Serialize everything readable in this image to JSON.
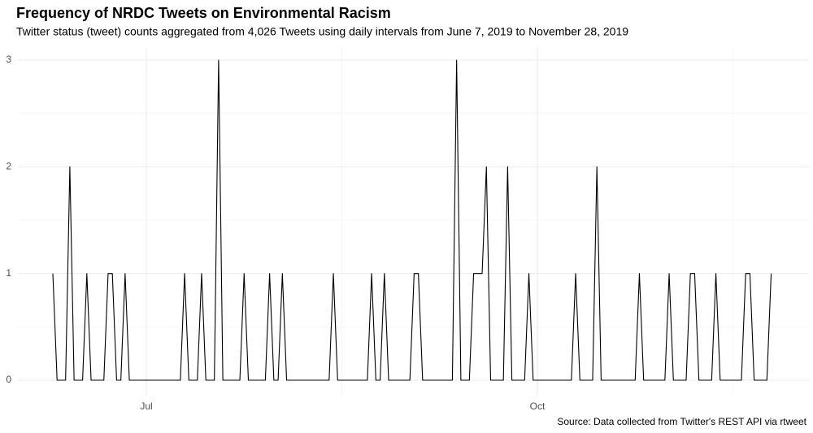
{
  "chart_data": {
    "type": "line",
    "title": "Frequency of NRDC Tweets on Environmental Racism",
    "subtitle": "Twitter status (tweet) counts aggregated from 4,026 Tweets using daily intervals from June 7, 2019 to November 28, 2019",
    "caption": "Source: Data collected from Twitter's REST API via rtweet",
    "categories": [
      null,
      null,
      null,
      null,
      null,
      null,
      null,
      null,
      null,
      null,
      null,
      null,
      null,
      null,
      null,
      null,
      null,
      null,
      null,
      null,
      null,
      null,
      "Jul",
      null,
      null,
      null,
      null,
      null,
      null,
      null,
      null,
      null,
      null,
      null,
      null,
      null,
      null,
      null,
      null,
      null,
      null,
      null,
      null,
      null,
      null,
      null,
      null,
      null,
      null,
      null,
      null,
      null,
      null,
      null,
      null,
      null,
      null,
      null,
      null,
      null,
      null,
      null,
      null,
      null,
      null,
      null,
      null,
      null,
      null,
      null,
      null,
      null,
      null,
      null,
      null,
      null,
      null,
      null,
      null,
      null,
      null,
      null,
      null,
      null,
      null,
      null,
      null,
      null,
      null,
      null,
      null,
      null,
      null,
      null,
      null,
      null,
      null,
      null,
      null,
      null,
      null,
      null,
      null,
      null,
      null,
      null,
      null,
      null,
      null,
      null,
      null,
      null,
      null,
      null,
      "Oct",
      null,
      null,
      null,
      null,
      null,
      null,
      null,
      null,
      null,
      null,
      null,
      null,
      null,
      null,
      null,
      null,
      null,
      null,
      null,
      null,
      null,
      null,
      null,
      null,
      null,
      null,
      null,
      null,
      null,
      null,
      null,
      null,
      null,
      null,
      null,
      null,
      null,
      null,
      null,
      null,
      null,
      null,
      null,
      null,
      null,
      null,
      null,
      null,
      null,
      null,
      null,
      null,
      null,
      null,
      null
    ],
    "values": [
      1,
      0,
      0,
      0,
      2,
      0,
      0,
      0,
      1,
      0,
      0,
      0,
      0,
      1,
      1,
      0,
      0,
      1,
      0,
      0,
      0,
      0,
      0,
      0,
      0,
      0,
      0,
      0,
      0,
      0,
      0,
      1,
      0,
      0,
      0,
      1,
      0,
      0,
      0,
      3,
      0,
      0,
      0,
      0,
      0,
      1,
      0,
      0,
      0,
      0,
      0,
      1,
      0,
      0,
      1,
      0,
      0,
      0,
      0,
      0,
      0,
      0,
      0,
      0,
      0,
      0,
      1,
      0,
      0,
      0,
      0,
      0,
      0,
      0,
      0,
      1,
      0,
      0,
      1,
      0,
      0,
      0,
      0,
      0,
      0,
      1,
      1,
      0,
      0,
      0,
      0,
      0,
      0,
      0,
      0,
      3,
      0,
      0,
      0,
      1,
      1,
      1,
      2,
      0,
      0,
      0,
      0,
      2,
      0,
      0,
      0,
      0,
      1,
      0,
      0,
      0,
      0,
      0,
      0,
      0,
      0,
      0,
      0,
      1,
      0,
      0,
      0,
      0,
      2,
      0,
      0,
      0,
      0,
      0,
      0,
      0,
      0,
      0,
      1,
      0,
      0,
      0,
      0,
      0,
      0,
      1,
      0,
      0,
      0,
      0,
      1,
      1,
      0,
      0,
      0,
      0,
      1,
      0,
      0,
      0,
      0,
      0,
      0,
      1,
      1,
      0,
      0,
      0,
      0,
      1
    ],
    "color": "#000000",
    "ylim": [
      0,
      3
    ],
    "yticks": [
      0,
      1,
      2,
      3
    ],
    "grid": true
  }
}
